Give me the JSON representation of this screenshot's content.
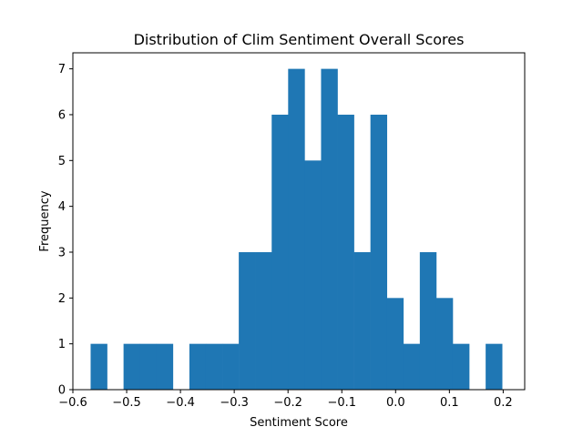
{
  "chart_data": {
    "type": "bar",
    "title": "Distribution of Clim Sentiment Overall Scores",
    "xlabel": "Sentiment Score",
    "ylabel": "Frequency",
    "xlim": [
      -0.6,
      0.24
    ],
    "ylim": [
      0,
      7.35
    ],
    "xticks": [
      -0.6,
      -0.5,
      -0.4,
      -0.3,
      -0.2,
      -0.1,
      0.0,
      0.1,
      0.2
    ],
    "xtick_labels": [
      "−0.6",
      "−0.5",
      "−0.4",
      "−0.3",
      "−0.2",
      "−0.1",
      "0.0",
      "0.1",
      "0.2"
    ],
    "yticks": [
      0,
      1,
      2,
      3,
      4,
      5,
      6,
      7
    ],
    "ytick_labels": [
      "0",
      "1",
      "2",
      "3",
      "4",
      "5",
      "6",
      "7"
    ],
    "bar_color": "#1f77b4",
    "bins": {
      "start": -0.567,
      "width": 0.0306,
      "counts": [
        1,
        0,
        1,
        1,
        1,
        0,
        1,
        1,
        1,
        3,
        3,
        6,
        7,
        5,
        7,
        6,
        3,
        6,
        2,
        1,
        3,
        2,
        1,
        0,
        1
      ]
    }
  }
}
